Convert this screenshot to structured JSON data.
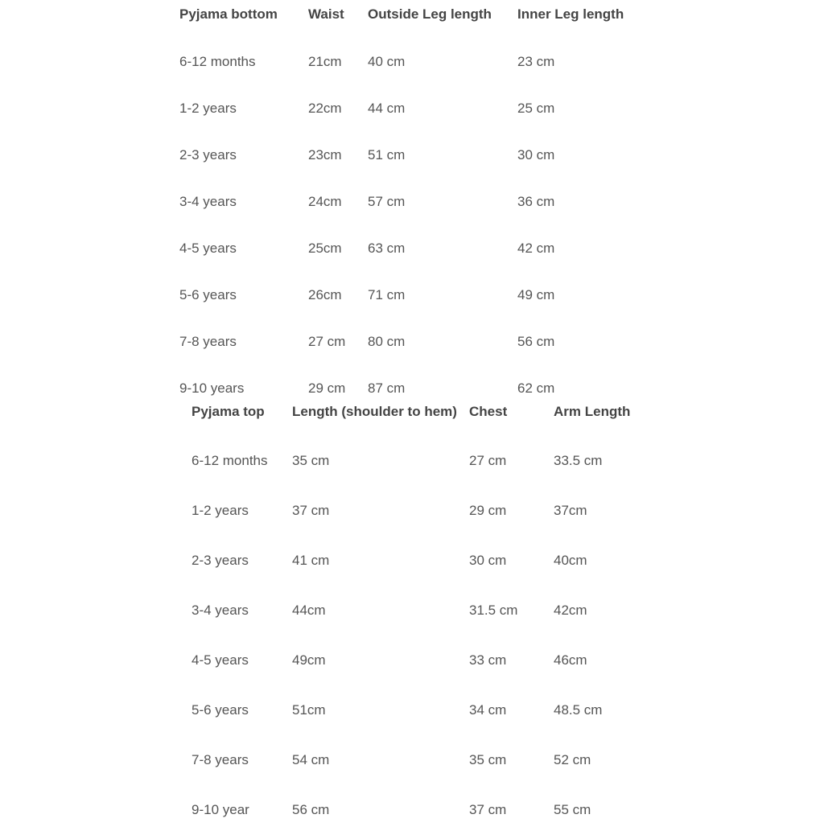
{
  "table1": {
    "headers": [
      "Pyjama bottom",
      "Waist",
      "Outside Leg length",
      "Inner Leg length"
    ],
    "rows": [
      [
        "6-12 months",
        "21cm",
        "40 cm",
        "23 cm"
      ],
      [
        "1-2 years",
        "22cm",
        "44 cm",
        "25 cm"
      ],
      [
        "2-3 years",
        "23cm",
        "51 cm",
        "30 cm"
      ],
      [
        "3-4 years",
        "24cm",
        "57 cm",
        "36 cm"
      ],
      [
        "4-5 years",
        "25cm",
        "63 cm",
        "42 cm"
      ],
      [
        "5-6 years",
        "26cm",
        "71 cm",
        "49 cm"
      ],
      [
        "7-8 years",
        "27 cm",
        "80 cm",
        "56 cm"
      ],
      [
        "9-10 years",
        "29 cm",
        "87 cm",
        "62 cm"
      ]
    ]
  },
  "table2": {
    "headers": [
      "Pyjama top",
      "Length (shoulder to hem)",
      "Chest",
      "Arm Length"
    ],
    "rows": [
      [
        "6-12 months",
        "35 cm",
        "27 cm",
        "33.5 cm"
      ],
      [
        "1-2 years",
        "37 cm",
        "29 cm",
        "37cm"
      ],
      [
        "2-3 years",
        "41 cm",
        "30 cm",
        "40cm"
      ],
      [
        "3-4 years",
        "44cm",
        "31.5 cm",
        "42cm"
      ],
      [
        "4-5 years",
        "49cm",
        "33 cm",
        "46cm"
      ],
      [
        "5-6 years",
        "51cm",
        "34 cm",
        "48.5 cm"
      ],
      [
        "7-8 years",
        "54 cm",
        "35 cm",
        "52 cm"
      ],
      [
        "9-10 year",
        "56 cm",
        "37 cm",
        "55 cm"
      ]
    ]
  },
  "styling": {
    "background_color": "#ffffff",
    "text_color": "#555555",
    "header_color": "#444444",
    "font_size": 17,
    "header_weight": 700,
    "font_family": "-apple-system, Helvetica, Arial, sans-serif"
  }
}
